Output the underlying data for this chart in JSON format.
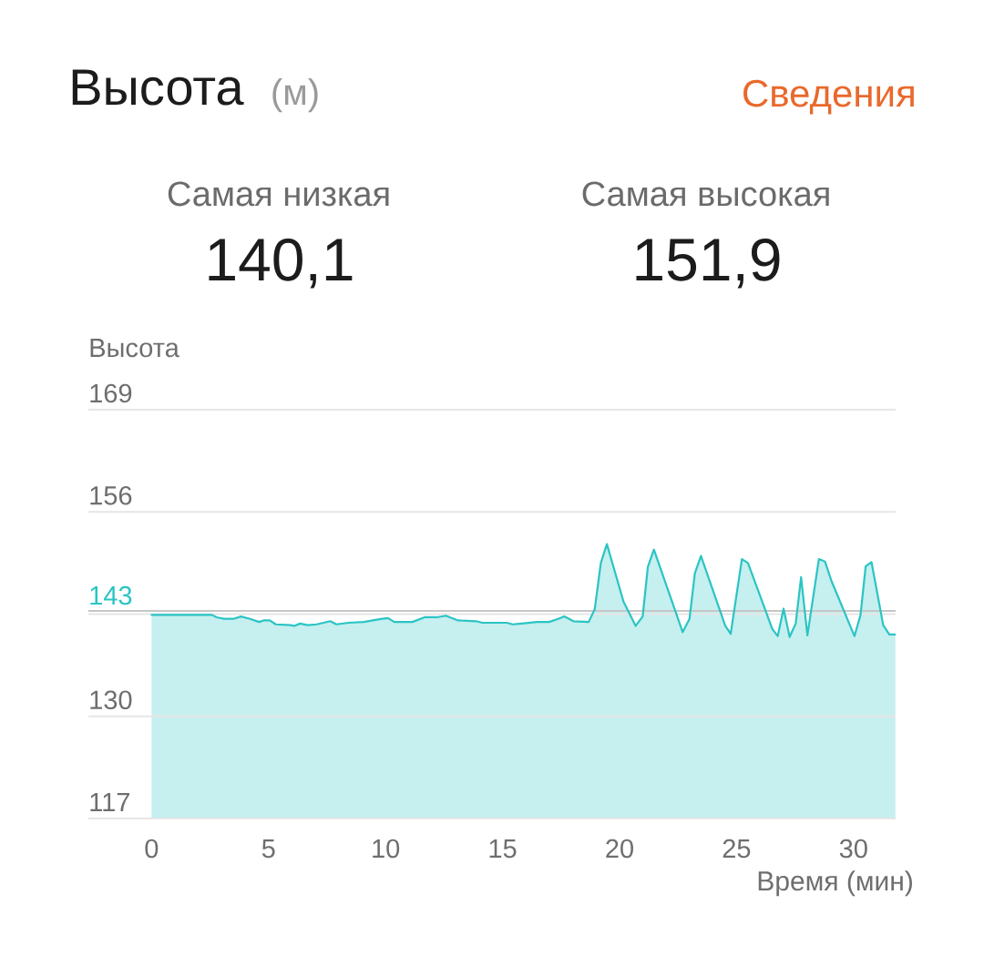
{
  "chart_data": {
    "type": "area",
    "title": "Высота",
    "subtitle": "(м)",
    "ylabel": "Высота",
    "xlabel": "Время (мин)",
    "annotations": [
      "Сведения",
      "Самая низкая",
      "140,1",
      "Самая высокая",
      "151,9"
    ],
    "x": [
      0,
      2.58,
      2.78,
      3.1,
      3.49,
      3.82,
      4.21,
      4.6,
      4.79,
      5.05,
      5.31,
      5.96,
      6.09,
      6.35,
      6.67,
      7.06,
      7.64,
      7.9,
      8.42,
      9.07,
      9.46,
      9.85,
      10.11,
      10.37,
      11.15,
      11.67,
      12.19,
      12.58,
      13.1,
      13.87,
      14.14,
      15.18,
      15.43,
      15.82,
      16.47,
      16.99,
      17.38,
      17.64,
      18.03,
      18.68,
      18.94,
      19.2,
      19.46,
      20.17,
      20.69,
      20.99,
      21.21,
      21.47,
      22.7,
      22.99,
      23.22,
      23.48,
      24.52,
      24.75,
      25.23,
      25.49,
      26.53,
      26.76,
      27.01,
      27.27,
      27.53,
      27.76,
      28.03,
      28.52,
      28.78,
      29.06,
      30.04,
      30.3,
      30.52,
      30.77,
      31.27,
      31.53,
      31.79
    ],
    "values": [
      142.9,
      142.9,
      142.6,
      142.4,
      142.4,
      142.7,
      142.4,
      142.0,
      142.2,
      142.2,
      141.7,
      141.6,
      141.5,
      141.8,
      141.6,
      141.7,
      142.1,
      141.7,
      141.9,
      142.0,
      142.2,
      142.4,
      142.5,
      142.0,
      142.0,
      142.6,
      142.6,
      142.8,
      142.2,
      142.1,
      141.9,
      141.9,
      141.7,
      141.8,
      142.0,
      142.0,
      142.4,
      142.7,
      142.1,
      142.0,
      143.6,
      149.5,
      151.9,
      144.6,
      141.5,
      142.7,
      149.0,
      151.2,
      140.7,
      142.4,
      148.2,
      150.4,
      141.5,
      140.5,
      150.0,
      149.5,
      141.1,
      140.2,
      143.7,
      140.1,
      141.8,
      147.7,
      140.3,
      150.0,
      149.7,
      147.2,
      140.2,
      142.9,
      149.1,
      149.6,
      141.6,
      140.4,
      140.4
    ],
    "color": "#2bc4c4",
    "xlim": [
      -2.7,
      31.8
    ],
    "ylim": [
      117,
      169
    ],
    "xticks": [
      0,
      5,
      10,
      15,
      20,
      25,
      30
    ],
    "yticks": [
      117,
      130,
      {
        "value": 143,
        "label": null
      },
      156,
      169
    ],
    "grid": "y",
    "ref_lines": [
      {
        "axis": "y",
        "value": 143.4,
        "label": "143",
        "color": "#c6c6c6"
      }
    ],
    "marker": "none",
    "line_style": "solid"
  }
}
